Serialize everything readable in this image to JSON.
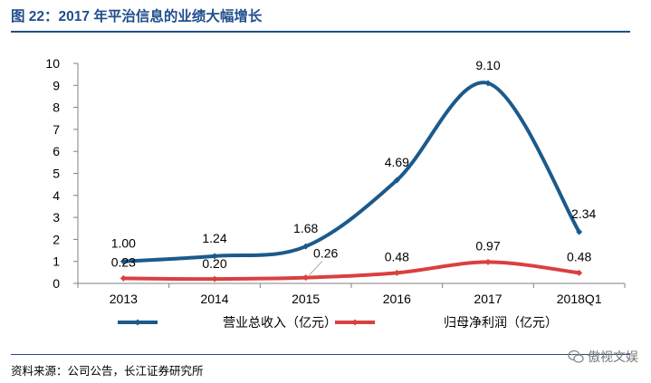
{
  "header": {
    "title": "图 22：2017 年平治信息的业绩大幅增长"
  },
  "footer": {
    "source": "资料来源：公司公告，长江证券研究所",
    "watermark": "傲视文娱",
    "watermark_icon": "wechat-icon"
  },
  "colors": {
    "accent": "#1f4e8c",
    "series1": "#1b5a8c",
    "series2": "#d9403f",
    "grid": "#bfbfbf"
  },
  "chart_data": {
    "type": "line",
    "categories": [
      "2013",
      "2014",
      "2015",
      "2016",
      "2017",
      "2018Q1"
    ],
    "ylim": [
      0,
      10
    ],
    "yticks": [
      "0",
      "1",
      "2",
      "3",
      "4",
      "5",
      "6",
      "7",
      "8",
      "9",
      "10"
    ],
    "grid": false,
    "legend_position": "bottom",
    "xlabel": "",
    "ylabel": "",
    "series": [
      {
        "name": "营业总收入（亿元）",
        "values": [
          1.0,
          1.24,
          1.68,
          4.69,
          9.1,
          2.34
        ],
        "labels": [
          "1.00",
          "1.24",
          "1.68",
          "4.69",
          "9.10",
          "2.34"
        ]
      },
      {
        "name": "归母净利润（亿元）",
        "values": [
          0.23,
          0.2,
          0.26,
          0.48,
          0.97,
          0.48
        ],
        "labels": [
          "0.23",
          "0.20",
          "0.26",
          "0.48",
          "0.97",
          "0.48"
        ]
      }
    ]
  }
}
